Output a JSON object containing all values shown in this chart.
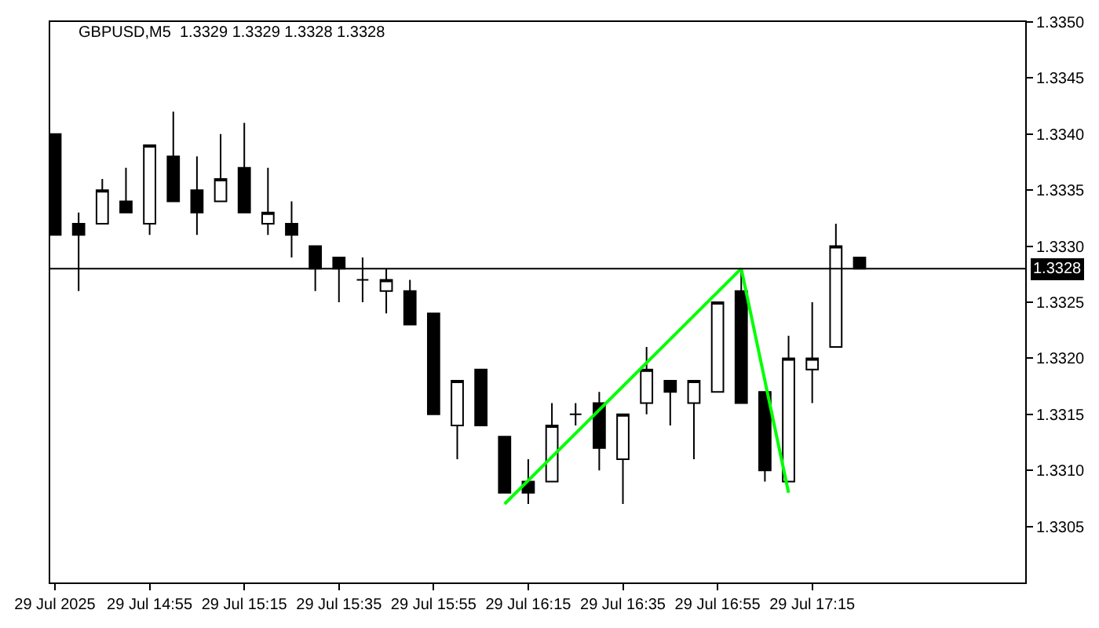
{
  "chart_data": {
    "type": "candlestick",
    "title": "GBPUSD,M5  1.3329 1.3329 1.3328 1.3328",
    "x": [
      "2025-07-29T14:35",
      "2025-07-29T14:40",
      "2025-07-29T14:45",
      "2025-07-29T14:50",
      "2025-07-29T14:55",
      "2025-07-29T15:00",
      "2025-07-29T15:05",
      "2025-07-29T15:10",
      "2025-07-29T15:15",
      "2025-07-29T15:20",
      "2025-07-29T15:25",
      "2025-07-29T15:30",
      "2025-07-29T15:35",
      "2025-07-29T15:40",
      "2025-07-29T15:45",
      "2025-07-29T15:50",
      "2025-07-29T15:55",
      "2025-07-29T16:00",
      "2025-07-29T16:05",
      "2025-07-29T16:10",
      "2025-07-29T16:15",
      "2025-07-29T16:20",
      "2025-07-29T16:25",
      "2025-07-29T16:30",
      "2025-07-29T16:35",
      "2025-07-29T16:40",
      "2025-07-29T16:45",
      "2025-07-29T16:50",
      "2025-07-29T16:55",
      "2025-07-29T17:00",
      "2025-07-29T17:05",
      "2025-07-29T17:10",
      "2025-07-29T17:15",
      "2025-07-29T17:20",
      "2025-07-29T17:25"
    ],
    "ohlc": [
      [
        1.334,
        1.334,
        1.3331,
        1.3331
      ],
      [
        1.3332,
        1.3333,
        1.3326,
        1.3331
      ],
      [
        1.3332,
        1.3336,
        1.3332,
        1.3335
      ],
      [
        1.3334,
        1.3337,
        1.3333,
        1.3333
      ],
      [
        1.3332,
        1.3339,
        1.3331,
        1.3339
      ],
      [
        1.3338,
        1.3342,
        1.3334,
        1.3334
      ],
      [
        1.3335,
        1.3338,
        1.3331,
        1.3333
      ],
      [
        1.3334,
        1.334,
        1.3334,
        1.3336
      ],
      [
        1.3337,
        1.3341,
        1.3333,
        1.3333
      ],
      [
        1.3332,
        1.3337,
        1.3331,
        1.3333
      ],
      [
        1.3332,
        1.3334,
        1.3329,
        1.3331
      ],
      [
        1.333,
        1.333,
        1.3326,
        1.3328
      ],
      [
        1.3329,
        1.3329,
        1.3325,
        1.3328
      ],
      [
        1.3327,
        1.3329,
        1.3325,
        1.3327
      ],
      [
        1.3326,
        1.3328,
        1.3324,
        1.3327
      ],
      [
        1.3326,
        1.3327,
        1.3323,
        1.3323
      ],
      [
        1.3324,
        1.3324,
        1.3315,
        1.3315
      ],
      [
        1.3314,
        1.3318,
        1.3311,
        1.3318
      ],
      [
        1.3319,
        1.3319,
        1.3314,
        1.3314
      ],
      [
        1.3313,
        1.3313,
        1.3308,
        1.3308
      ],
      [
        1.3309,
        1.3311,
        1.3307,
        1.3308
      ],
      [
        1.3309,
        1.3316,
        1.3309,
        1.3314
      ],
      [
        1.3315,
        1.3316,
        1.3314,
        1.3315
      ],
      [
        1.3316,
        1.3317,
        1.331,
        1.3312
      ],
      [
        1.3311,
        1.3315,
        1.3307,
        1.3315
      ],
      [
        1.3316,
        1.3321,
        1.3315,
        1.3319
      ],
      [
        1.3318,
        1.3318,
        1.3314,
        1.3317
      ],
      [
        1.3316,
        1.3318,
        1.3311,
        1.3318
      ],
      [
        1.3317,
        1.3325,
        1.3317,
        1.3325
      ],
      [
        1.3326,
        1.3328,
        1.3316,
        1.3316
      ],
      [
        1.3317,
        1.3317,
        1.3309,
        1.331
      ],
      [
        1.3309,
        1.3322,
        1.3309,
        1.332
      ],
      [
        1.3319,
        1.3325,
        1.3316,
        1.332
      ],
      [
        1.3321,
        1.3332,
        1.3321,
        1.333
      ],
      [
        1.3329,
        1.3329,
        1.3328,
        1.3328
      ]
    ],
    "series": [
      {
        "type": "line",
        "color": "#00ff00",
        "x": [
          "2025-07-29T16:10",
          "2025-07-29T17:00",
          "2025-07-29T17:10"
        ],
        "values": [
          1.3307,
          1.3328,
          1.3308
        ]
      }
    ],
    "xlim": [
      "2025-07-29T14:34",
      "2025-07-29T18:00"
    ],
    "xticks": [
      {
        "value": "2025-07-29T14:35",
        "label": "29 Jul 2025"
      },
      {
        "value": "2025-07-29T14:55",
        "label": "29 Jul 14:55"
      },
      {
        "value": "2025-07-29T15:15",
        "label": "29 Jul 15:15"
      },
      {
        "value": "2025-07-29T15:35",
        "label": "29 Jul 15:35"
      },
      {
        "value": "2025-07-29T15:55",
        "label": "29 Jul 15:55"
      },
      {
        "value": "2025-07-29T16:15",
        "label": "29 Jul 16:15"
      },
      {
        "value": "2025-07-29T16:35",
        "label": "29 Jul 16:35"
      },
      {
        "value": "2025-07-29T16:55",
        "label": "29 Jul 16:55"
      },
      {
        "value": "2025-07-29T17:15",
        "label": "29 Jul 17:15"
      }
    ],
    "ylim": [
      1.33,
      1.335
    ],
    "yticks": [
      {
        "value": 1.3305,
        "label": "1.3305"
      },
      {
        "value": 1.331,
        "label": "1.3310"
      },
      {
        "value": 1.3315,
        "label": "1.3315"
      },
      {
        "value": 1.332,
        "label": "1.3320"
      },
      {
        "value": 1.3325,
        "label": "1.3325"
      },
      {
        "value": 1.333,
        "label": "1.3330"
      },
      {
        "value": 1.3335,
        "label": "1.3335"
      },
      {
        "value": 1.334,
        "label": "1.3340"
      },
      {
        "value": 1.3345,
        "label": "1.3345"
      },
      {
        "value": 1.335,
        "label": "1.3350"
      }
    ],
    "ref_lines": [
      {
        "axis": "y",
        "value": 1.3328,
        "label": "1.3328",
        "color": "#000000"
      }
    ]
  }
}
